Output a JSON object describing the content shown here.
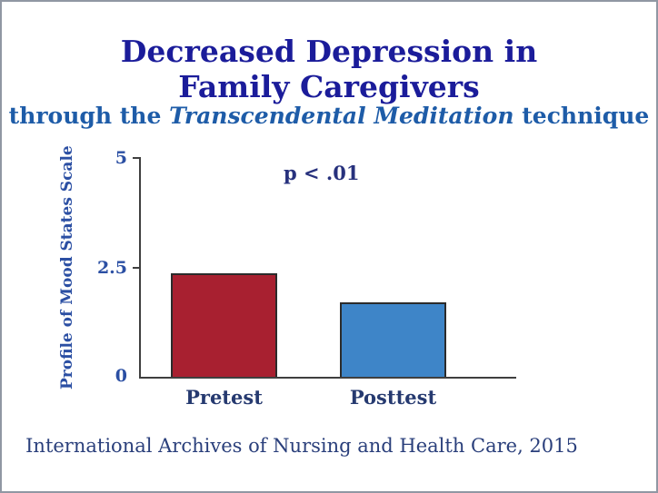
{
  "header": {
    "title_line1": "Decreased Depression in",
    "title_line2": "Family Caregivers",
    "subtitle_prefix": "through the ",
    "subtitle_italic": "Transcendental Meditation",
    "subtitle_suffix": " technique"
  },
  "footer": {
    "citation": "International Archives of Nursing and Health Care, 2015"
  },
  "chart_data": {
    "type": "bar",
    "title": "Decreased Depression in Family Caregivers",
    "subtitle": "through the Transcendental Meditation technique",
    "categories": [
      "Pretest",
      "Posttest"
    ],
    "values": [
      2.35,
      1.7
    ],
    "ylabel": "Profile of Mood States Scale",
    "xlabel": "",
    "ylim": [
      0,
      5
    ],
    "yticks": {
      "t5": "5",
      "t25": "2.5",
      "t0": "0"
    },
    "annotation": "p < .01",
    "grid": "off",
    "legend": "none",
    "bar_colors": [
      "#a82030",
      "#3e85c8"
    ],
    "colors": {
      "title_navy": "#1b1c9a",
      "subtitle_blue": "#1e5ca8",
      "axis_text_blue": "#2b4fa3",
      "axis_line": "#3f3f3f",
      "pretest_red": "#a82030",
      "posttest_blue": "#3e85c8"
    }
  }
}
